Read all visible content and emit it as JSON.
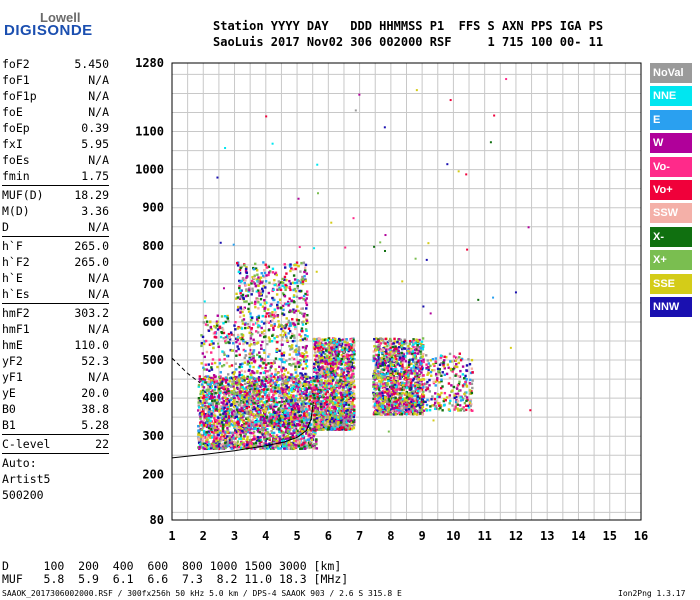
{
  "logo": {
    "line1": "Lowell",
    "line2": "DIGISONDE"
  },
  "header": {
    "line1": "Station YYYY DAY   DDD HHMMSS P1  FFS S AXN PPS IGA PS",
    "line2": "SaoLuis 2017 Nov02 306 002000 RSF     1 715 100 00- 11"
  },
  "params_group1": [
    {
      "name": "foF2",
      "value": "5.450"
    },
    {
      "name": "foF1",
      "value": "N/A"
    },
    {
      "name": "foF1p",
      "value": "N/A"
    },
    {
      "name": "foE",
      "value": "N/A"
    },
    {
      "name": "foEp",
      "value": "0.39"
    },
    {
      "name": "fxI",
      "value": "5.95"
    },
    {
      "name": "foEs",
      "value": "N/A"
    },
    {
      "name": "fmin",
      "value": "1.75"
    }
  ],
  "params_group2": [
    {
      "name": "MUF(D)",
      "value": "18.29"
    },
    {
      "name": "M(D)",
      "value": "3.36"
    },
    {
      "name": "D",
      "value": "N/A"
    }
  ],
  "params_group3": [
    {
      "name": "h`F",
      "value": "265.0"
    },
    {
      "name": "h`F2",
      "value": "265.0"
    },
    {
      "name": "h`E",
      "value": "N/A"
    },
    {
      "name": "h`Es",
      "value": "N/A"
    }
  ],
  "params_group4": [
    {
      "name": "hmF2",
      "value": "303.2"
    },
    {
      "name": "hmF1",
      "value": "N/A"
    },
    {
      "name": "hmE",
      "value": "110.0"
    },
    {
      "name": "yF2",
      "value": "52.3"
    },
    {
      "name": "yF1",
      "value": "N/A"
    },
    {
      "name": "yE",
      "value": "20.0"
    },
    {
      "name": "B0",
      "value": "38.8"
    },
    {
      "name": "B1",
      "value": "5.28"
    }
  ],
  "c_level": {
    "label": "C-level",
    "value": "22"
  },
  "auto_lines": [
    "Auto:",
    "Artist5",
    "500200"
  ],
  "bottom": {
    "d_line": "D     100  200  400  600  800 1000 1500 3000 [km]",
    "muf_line": "MUF   5.8  5.9  6.1  6.6  7.3  8.2 11.0 18.3 [MHz]",
    "footer_left": "SAAOK_2017306002000.RSF / 300fx256h 50 kHz 5.0 km / DPS-4 SAAOK 903 / 2.6 S 315.8 E",
    "footer_right": "Ion2Png 1.3.17"
  },
  "legend": [
    {
      "label": "NoVal",
      "color": "#9a9a9a",
      "text": "#ffffff"
    },
    {
      "label": "NNE",
      "color": "#00e6f0",
      "text": "#ffffff"
    },
    {
      "label": "E",
      "color": "#2aa0f0",
      "text": "#ffffff"
    },
    {
      "label": "W",
      "color": "#b0009a",
      "text": "#ffffff"
    },
    {
      "label": "Vo-",
      "color": "#ff2a8a",
      "text": "#ffffff"
    },
    {
      "label": "Vo+",
      "color": "#f0003a",
      "text": "#ffffff"
    },
    {
      "label": "SSW",
      "color": "#f4b0a8",
      "text": "#ffffff"
    },
    {
      "label": "X-",
      "color": "#107010",
      "text": "#ffffff"
    },
    {
      "label": "X+",
      "color": "#7abe50",
      "text": "#ffffff"
    },
    {
      "label": "SSE",
      "color": "#d4cc18",
      "text": "#ffffff"
    },
    {
      "label": "NNW",
      "color": "#1a10b0",
      "text": "#ffffff"
    }
  ],
  "chart_data": {
    "type": "scatter",
    "x_ticks": [
      1,
      2,
      3,
      4,
      5,
      6,
      7,
      8,
      9,
      10,
      11,
      12,
      13,
      14,
      15,
      16
    ],
    "y_ticks": [
      80,
      200,
      300,
      400,
      500,
      600,
      700,
      800,
      900,
      1000,
      1100,
      1280
    ],
    "xlim": [
      1,
      16
    ],
    "ylim": [
      80,
      1280
    ],
    "grid": true,
    "clusters": [
      {
        "x": [
          1.8,
          5.6
        ],
        "y": [
          270,
          460
        ],
        "weight": 1.0
      },
      {
        "x": [
          3.0,
          5.3
        ],
        "y": [
          330,
          760
        ],
        "weight": 0.55
      },
      {
        "x": [
          5.5,
          6.8
        ],
        "y": [
          320,
          560
        ],
        "weight": 0.7
      },
      {
        "x": [
          7.4,
          9.0
        ],
        "y": [
          360,
          560
        ],
        "weight": 0.6
      },
      {
        "x": [
          9.0,
          10.6
        ],
        "y": [
          370,
          520
        ],
        "weight": 0.12
      },
      {
        "x": [
          1.9,
          3.0
        ],
        "y": [
          330,
          620
        ],
        "weight": 0.12
      }
    ],
    "trace_curve": [
      [
        1.0,
        243
      ],
      [
        2.0,
        252
      ],
      [
        3.0,
        262
      ],
      [
        4.0,
        275
      ],
      [
        4.6,
        285
      ],
      [
        5.0,
        297
      ],
      [
        5.3,
        315
      ],
      [
        5.45,
        345
      ],
      [
        5.52,
        390
      ]
    ],
    "dashed_curve": [
      [
        1.0,
        505
      ],
      [
        1.5,
        465
      ],
      [
        1.9,
        440
      ]
    ]
  }
}
